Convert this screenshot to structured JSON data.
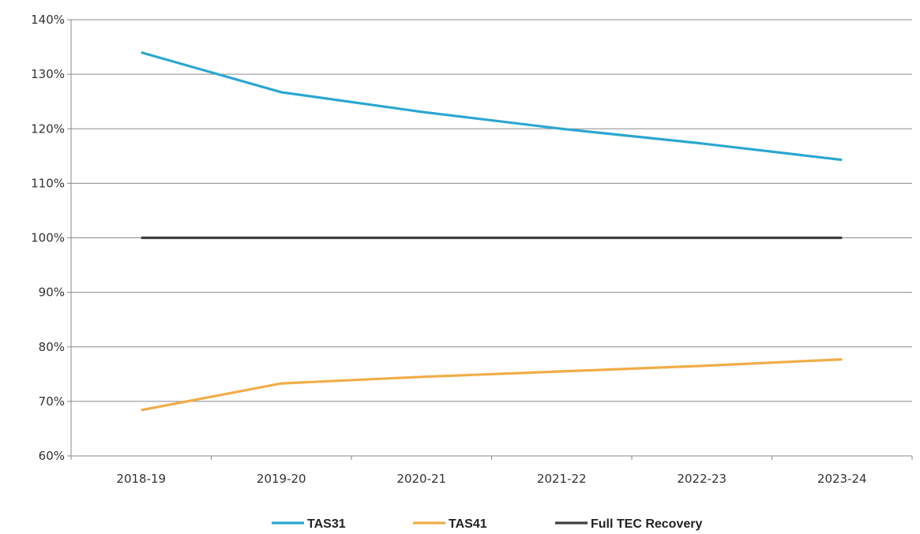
{
  "chart_data": {
    "type": "line",
    "categories": [
      "2018-19",
      "2019-20",
      "2020-21",
      "2021-22",
      "2022-23",
      "2023-24"
    ],
    "ylim": [
      60,
      140
    ],
    "yticks": [
      60,
      70,
      80,
      90,
      100,
      110,
      120,
      130,
      140
    ],
    "ytick_labels": [
      "60%",
      "70%",
      "80%",
      "90%",
      "100%",
      "110%",
      "120%",
      "130%",
      "140%"
    ],
    "grid": true,
    "legend_position": "bottom",
    "series": [
      {
        "name": "TAS31",
        "color": "#2aa7d0",
        "values": [
          134.0,
          126.7,
          123.1,
          120.0,
          117.3,
          114.3
        ]
      },
      {
        "name": "TAS41",
        "color": "#f0ad48",
        "values": [
          68.4,
          73.3,
          74.5,
          75.5,
          76.5,
          77.7
        ]
      },
      {
        "name": "Full TEC Recovery",
        "color": "#404040",
        "values": [
          100,
          100,
          100,
          100,
          100,
          100
        ]
      }
    ]
  }
}
